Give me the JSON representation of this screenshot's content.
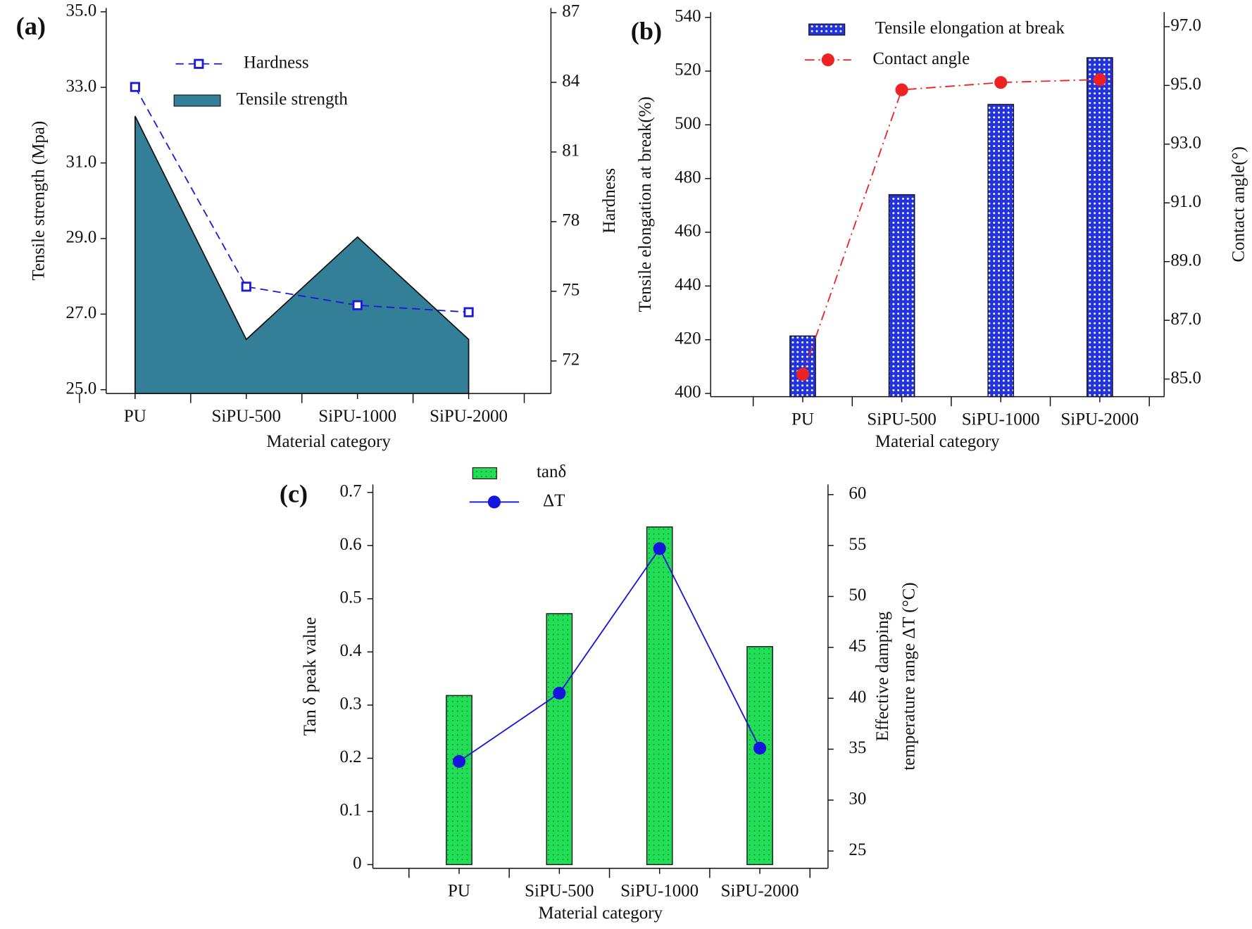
{
  "chart_data": [
    {
      "type": "combo",
      "panel": "(a)",
      "xlabel": "Material category",
      "ylabel": "Tensile strength (Mpa)",
      "y2label": "Hardness",
      "categories": [
        "PU",
        "SiPU-500",
        "SiPU-1000",
        "SiPU-2000"
      ],
      "ylim": [
        24.9,
        35.1
      ],
      "yticks": [
        {
          "value": 25,
          "label": "25.0"
        },
        {
          "value": 27,
          "label": "27.0"
        },
        {
          "value": 29,
          "label": "29.0"
        },
        {
          "value": 31,
          "label": "31.0"
        },
        {
          "value": 33,
          "label": "33.0"
        },
        {
          "value": 35,
          "label": "35.0"
        }
      ],
      "y2lim": [
        70.6,
        87.2
      ],
      "y2ticks": [
        72,
        75,
        78,
        81,
        84,
        87
      ],
      "series": [
        {
          "name": "Hardness",
          "type": "line",
          "axis": "y2",
          "color": "#1a1ad8",
          "linestyle": "dashed",
          "marker": "square",
          "values": [
            83.8,
            75.2,
            74.4,
            74.1
          ]
        },
        {
          "name": "Tensile strength",
          "type": "area",
          "color": "#327f97",
          "values": [
            32.24,
            26.33,
            29.04,
            26.33
          ]
        }
      ]
    },
    {
      "type": "combo",
      "panel": "(b)",
      "xlabel": "Material category",
      "ylabel": "Tensile elongation at break(%)",
      "y2label": "Contact angle(°)",
      "categories": [
        "PU",
        "SiPU-500",
        "SiPU-1000",
        "SiPU-2000"
      ],
      "ylim": [
        398.8,
        542
      ],
      "yticks": [
        400,
        420,
        440,
        460,
        480,
        500,
        520,
        540
      ],
      "y2lim": [
        84.4,
        97.5
      ],
      "y2ticks": [
        {
          "value": 85,
          "label": "85.0"
        },
        {
          "value": 87,
          "label": "87.0"
        },
        {
          "value": 89,
          "label": "89.0"
        },
        {
          "value": 91,
          "label": "91.0"
        },
        {
          "value": 93,
          "label": "93.0"
        },
        {
          "value": 95,
          "label": "95.0"
        },
        {
          "value": 97,
          "label": "97.0"
        }
      ],
      "series": [
        {
          "name": "Tensile elongation at break",
          "type": "bar",
          "color": "#2233dd",
          "pattern": "dots",
          "values": [
            421.4,
            474,
            507.6,
            525
          ]
        },
        {
          "name": "Contact angle",
          "type": "line",
          "axis": "y2",
          "color": "#ee2222",
          "linestyle": "dash-dot",
          "marker": "circle",
          "values": [
            85.16,
            94.85,
            95.1,
            95.2
          ]
        }
      ]
    },
    {
      "type": "combo",
      "panel": "(c)",
      "xlabel": "Material category",
      "ylabel": "Tan δ peak value",
      "y2label": [
        "Effective damping",
        "temperature range ΔT (°C)"
      ],
      "categories": [
        "PU",
        "SiPU-500",
        "SiPU-1000",
        "SiPU-2000"
      ],
      "ylim": [
        -0.007,
        0.715
      ],
      "yticks": [
        0,
        0.1,
        0.2,
        0.3,
        0.4,
        0.5,
        0.6,
        0.7
      ],
      "y2lim": [
        23.3,
        61
      ],
      "y2ticks": [
        25,
        30,
        35,
        40,
        45,
        50,
        55,
        60
      ],
      "series": [
        {
          "name": "tanδ",
          "type": "bar",
          "color": "#22dd55",
          "pattern": "dots",
          "values": [
            0.318,
            0.472,
            0.635,
            0.41
          ]
        },
        {
          "name": "ΔT",
          "type": "line",
          "axis": "y2",
          "color": "#1515dd",
          "linestyle": "solid",
          "marker": "circle",
          "values": [
            33.8,
            40.5,
            54.7,
            35.1
          ]
        }
      ]
    }
  ]
}
